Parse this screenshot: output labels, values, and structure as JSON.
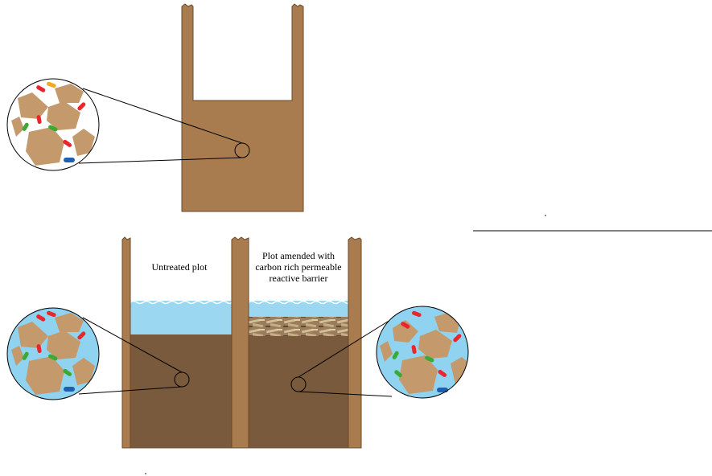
{
  "labels": {
    "untreated": "Untreated plot",
    "amended_line1": "Plot amended with",
    "amended_line2": "carbon rich permeable",
    "amended_line3": "reactive barrier"
  },
  "colors": {
    "wall": "#a97c50",
    "wall_edge": "#6b4a2a",
    "soil_dry": "#a97c50",
    "soil_wet": "#7a5a3c",
    "water": "#9cd7f2",
    "wave": "#ffffff",
    "magnifier_dry_bg": "#ffffff",
    "magnifier_wet_bg": "#8fd3f1",
    "particle": "#c49a6c",
    "microbe_red": "#e8262b",
    "microbe_green": "#3aaa35",
    "microbe_blue": "#1f5fb0",
    "microbe_orange": "#f5a623",
    "barrier": "#b39672"
  },
  "icons": {
    "magnifier": "magnifier-circle-icon",
    "microbe": "microbe-icon"
  }
}
